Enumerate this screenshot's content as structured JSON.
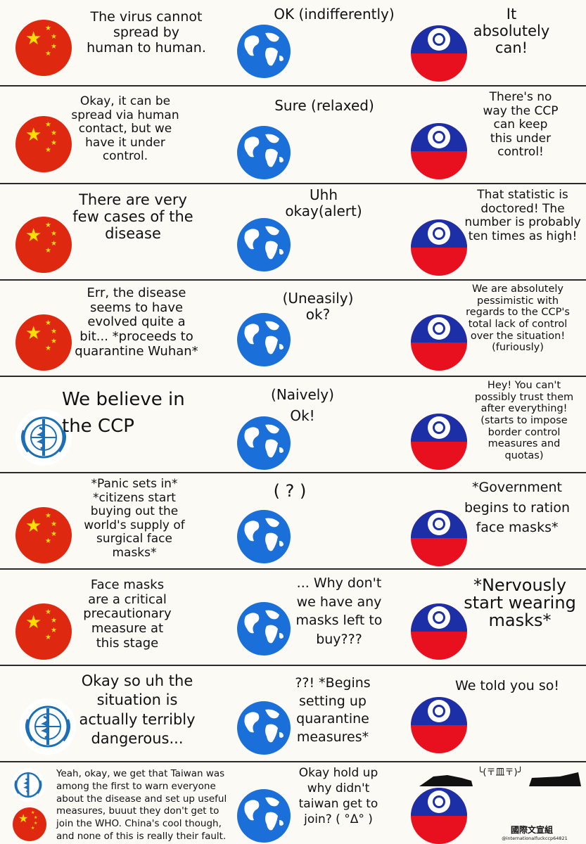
{
  "panels": [
    {
      "left_speaker": "china",
      "left_text": "The virus cannot\nspread by\nhuman to human.",
      "middle_text": "OK (indifferently)",
      "right_text": "It\nabsolutely\ncan!"
    },
    {
      "left_speaker": "china",
      "left_text": "Okay, it can be\nspread via human\ncontact, but we\nhave it under\ncontrol.",
      "middle_text": "Sure (relaxed)",
      "right_text": "There's no\nway the CCP\ncan keep\nthis under\ncontrol!"
    },
    {
      "left_speaker": "china",
      "left_text": "There are very\nfew cases of the\ndisease",
      "middle_text": "Uhh\nokay(alert)",
      "right_text": "That statistic is\ndoctored! The\nnumber is probably\nten times as high!"
    },
    {
      "left_speaker": "china",
      "left_text": "Err, the disease\nseems to have\nevolved quite a\nbit... *proceeds to\nquarantine Wuhan*",
      "middle_text": "(Uneasily)\nok?",
      "right_text": "We are absolutely\npessimistic with\nregards to the CCP's\ntotal lack of control\nover the situation!\n(furiously)"
    },
    {
      "left_speaker": "who",
      "left_text": "We believe in\nthe CCP",
      "middle_text": "(Naively)\nOk!",
      "right_text": "Hey! You can't\npossibly trust them\nafter everything!\n(starts to impose\nborder control\nmeasures and\nquotas)"
    },
    {
      "left_speaker": "china",
      "left_text": "*Panic sets in*\n*citizens start\nbuying out the\nworld's supply of\nsurgical face\nmasks*",
      "middle_text": "( ? )",
      "right_text": "*Government\nbegins to ration\nface masks*"
    },
    {
      "left_speaker": "china",
      "left_text": "Face masks\nare a critical\nprecautionary\nmeasure at\nthis stage",
      "middle_text": "... Why don't\nwe have any\nmasks left to\nbuy???",
      "right_text": "*Nervously\nstart wearing\nmasks*"
    },
    {
      "left_speaker": "who",
      "left_text": "Okay so uh the\nsituation is\nactually terribly\ndangerous...",
      "middle_text": "??! *Begins\nsetting up\nquarantine\nmeasures*",
      "right_text": "We told you so!"
    },
    {
      "left_speaker": "who+china",
      "left_text": "Yeah, okay, we get that Taiwan was\namong the first to warn everyone\nabout the disease and set up useful\nmeasures, buuut they don't get to\njoin the WHO. China's cool though,\nand none of this is really their fault.",
      "middle_text": "Okay hold up\nwhy didn't\ntaiwan get to\njoin? ( °Δ° )",
      "right_text": "",
      "right_emote": "╰(〒皿〒)╯",
      "watermark": "國際文宣組",
      "watermark_handle": "@internationalfuckccp64821"
    }
  ],
  "colors": {
    "china_red": "#de2910",
    "china_star": "#ffde00",
    "globe_ocean": "#1a6fd8",
    "globe_land": "#ffffff",
    "taiwan_red": "#e8101e",
    "taiwan_blue": "#1d2fa6",
    "who_blue": "#1c6fb5"
  },
  "icons": [
    "china-flag-icon",
    "globe-icon",
    "taiwan-flag-icon",
    "who-emblem-icon"
  ]
}
